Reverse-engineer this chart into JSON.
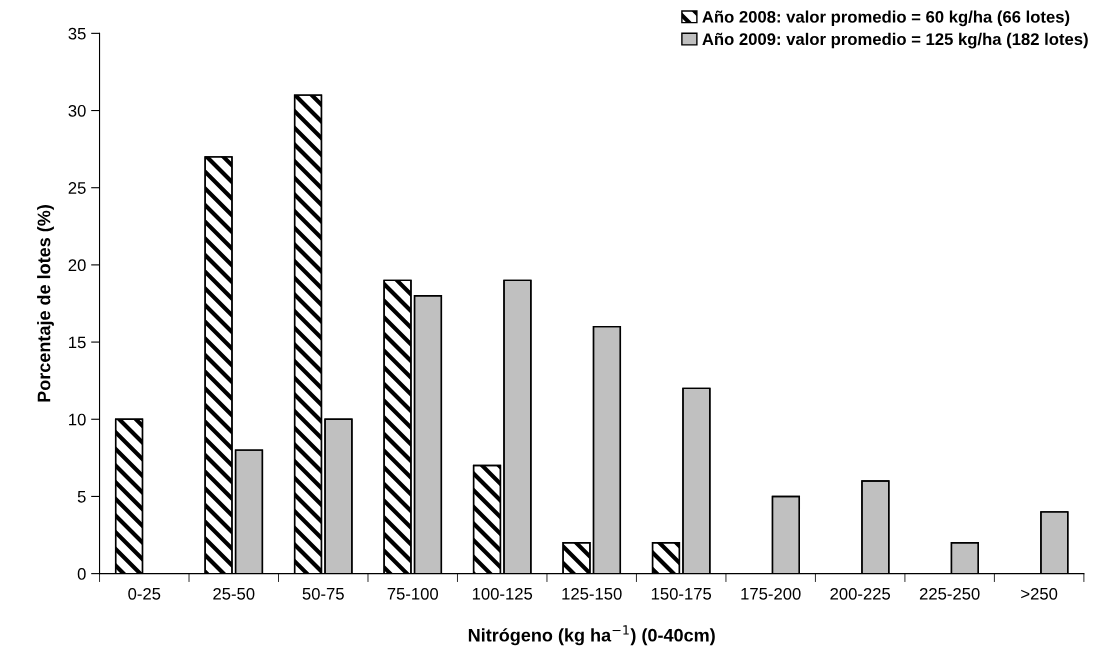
{
  "chart_data": {
    "type": "bar",
    "xlabel": "Nitrógeno (kg ha$^{−1}$) (0-40cm)",
    "ylabel": "Porcentaje de lotes (%)",
    "categories": [
      "0-25",
      "25-50",
      "50-75",
      "75-100",
      "100-125",
      "125-150",
      "150-175",
      "175-200",
      "200-225",
      "225-250",
      ">250"
    ],
    "series": [
      {
        "name": "Año 2008: valor promedio = 60 kg/ha (66 lotes)",
        "color": "#000000",
        "values": [
          10,
          27,
          31,
          19,
          7,
          2,
          2,
          null,
          null,
          null,
          null
        ]
      },
      {
        "name": "Año 2009: valor promedio = 125 kg/ha (182 lotes)",
        "color": "#c0c0c0",
        "values": [
          null,
          8,
          10,
          18,
          19,
          16,
          12,
          5,
          6,
          2,
          4
        ]
      }
    ],
    "ylim": [
      0,
      35
    ],
    "yticks": [
      0,
      5,
      10,
      15,
      20,
      25,
      30,
      35
    ],
    "grid": false,
    "legend": "top right"
  }
}
